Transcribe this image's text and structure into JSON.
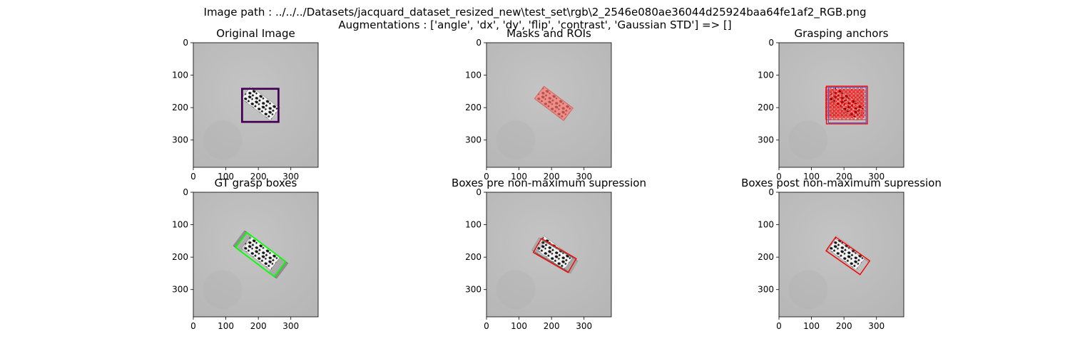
{
  "figure": {
    "suptitle_line1": "Image path : ../../../Datasets/jacquard_dataset_resized_new\\test_set\\rgb\\2_2546e080ae36044d25924baa64fe1af2_RGB.png",
    "suptitle_line2": "Augmentations : ['angle', 'dx', 'dy', 'flip', 'contrast', 'Gaussian STD'] => []"
  },
  "axis_ticks": {
    "x": [
      "0",
      "100",
      "200",
      "300"
    ],
    "y": [
      "0",
      "100",
      "200",
      "300"
    ]
  },
  "panels": [
    {
      "id": "original-image",
      "title": "Original Image"
    },
    {
      "id": "masks-and-rois",
      "title": "Masks and ROIs"
    },
    {
      "id": "grasping-anchors",
      "title": "Grasping anchors"
    },
    {
      "id": "gt-grasp-boxes",
      "title": "GT grasp boxes"
    },
    {
      "id": "boxes-pre-nms",
      "title": "Boxes pre non-maximum supression"
    },
    {
      "id": "boxes-post-nms",
      "title": "Boxes post non-maximum supression"
    }
  ],
  "colors": {
    "background_gray": "#bdbdbd",
    "roi_box": "#440154",
    "mask": "#f06a63",
    "anchor_red": "#ff0000",
    "anchor_blue": "#3f5bd6",
    "gt_green": "#00ff00",
    "pred_red": "#ff0000"
  }
}
